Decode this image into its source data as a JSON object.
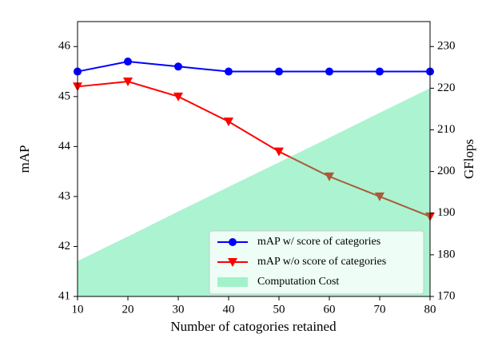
{
  "chart_data": {
    "type": "line",
    "x_label": "Number of catogories retained",
    "y_label": "mAP",
    "y2_label": "GFlops",
    "x": [
      10,
      20,
      30,
      40,
      50,
      60,
      70,
      80
    ],
    "series": [
      {
        "name": "mAP w/ score of categories",
        "color": "#0000ff",
        "marker": "circle",
        "values": [
          45.5,
          45.7,
          45.6,
          45.5,
          45.5,
          45.5,
          45.5,
          45.5
        ]
      },
      {
        "name": "mAP w/o score of categories",
        "color": "#ff0000",
        "marker": "triangle-down",
        "values": [
          45.2,
          45.3,
          45.0,
          44.5,
          43.9,
          43.4,
          43.0,
          42.6
        ]
      },
      {
        "name": "Computation Cost",
        "color": "#2ee08c",
        "type": "area",
        "axis": "y2",
        "values": [
          178.5,
          184.4,
          190.4,
          196.3,
          202.2,
          208.1,
          214.1,
          220
        ]
      }
    ],
    "xlim": [
      10,
      80
    ],
    "xticks": [
      10,
      20,
      30,
      40,
      50,
      60,
      70,
      80
    ],
    "ylim": [
      41,
      46.5
    ],
    "yticks": [
      41,
      42,
      43,
      44,
      45,
      46
    ],
    "y2lim": [
      170,
      236
    ],
    "y2ticks": [
      170,
      180,
      190,
      200,
      210,
      220,
      230
    ],
    "legend": "lower right"
  }
}
